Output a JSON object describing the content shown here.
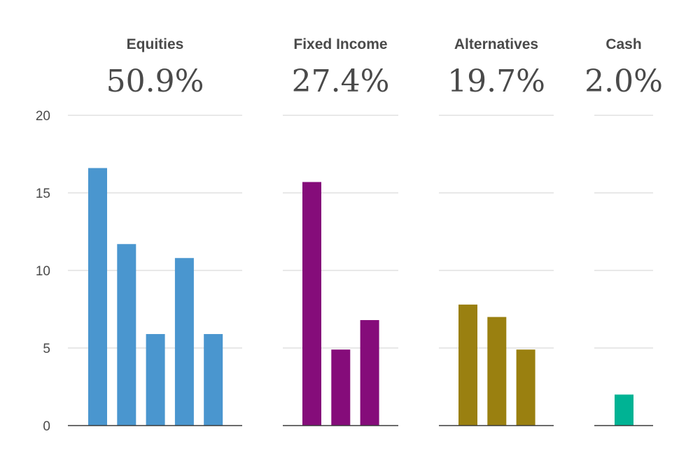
{
  "chart_data": {
    "type": "bar",
    "ylim": [
      0,
      20
    ],
    "yticks": [
      0,
      5,
      10,
      15,
      20
    ],
    "grid": true,
    "panels": [
      {
        "title": "Equities",
        "percent": "50.9%",
        "color": "#4a96cf",
        "values": [
          16.6,
          11.7,
          5.9,
          10.8,
          5.9
        ]
      },
      {
        "title": "Fixed Income",
        "percent": "27.4%",
        "color": "#850c7a",
        "values": [
          15.7,
          4.9,
          6.8
        ]
      },
      {
        "title": "Alternatives",
        "percent": "19.7%",
        "color": "#9a8010",
        "values": [
          7.8,
          7.0,
          4.9
        ]
      },
      {
        "title": "Cash",
        "percent": "2.0%",
        "color": "#00b394",
        "values": [
          2.0
        ]
      }
    ]
  }
}
